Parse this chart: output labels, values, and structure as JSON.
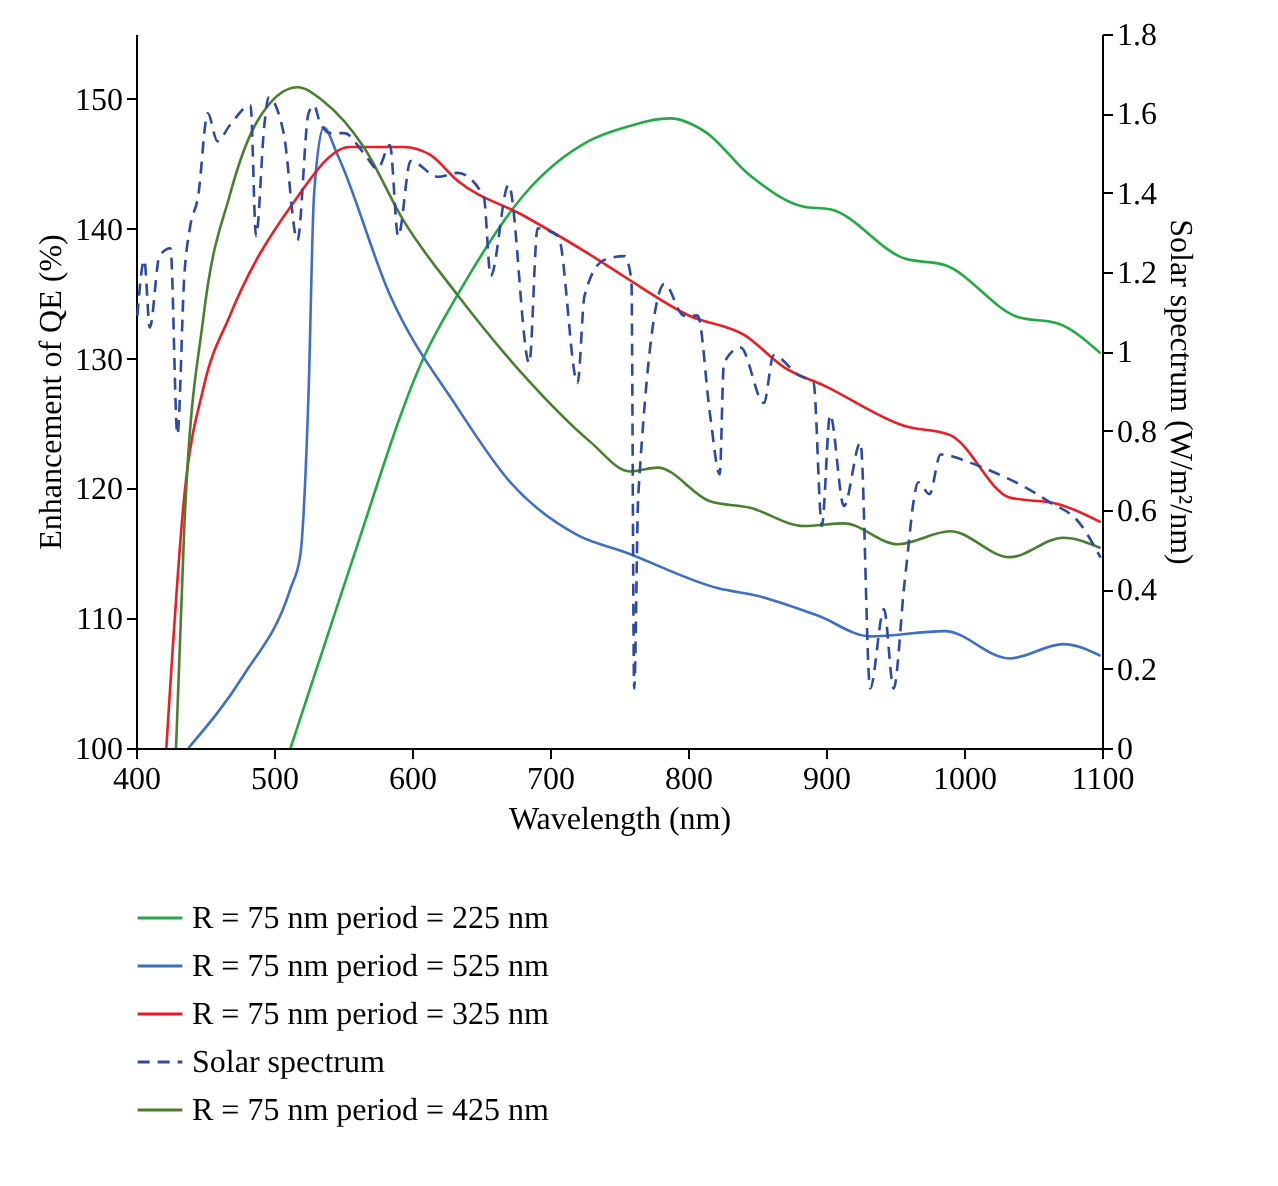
{
  "chart_data": {
    "type": "line",
    "xlabel": "Wavelength (nm)",
    "ylabel": "Enhancement of QE (%)",
    "y2label": "Solar spectrum (W/m²/nm)",
    "xlim": [
      400,
      1100
    ],
    "xticks": [
      400,
      500,
      600,
      700,
      800,
      900,
      1000,
      1100
    ],
    "ylim": [
      100,
      155
    ],
    "yticks": [
      100,
      110,
      120,
      130,
      140,
      150
    ],
    "y2lim": [
      0,
      1.8
    ],
    "y2ticks": [
      0,
      0.2,
      0.4,
      0.6,
      0.8,
      1,
      1.2,
      1.4,
      1.6,
      1.8
    ],
    "grid": false,
    "legend": "bottom",
    "series": [
      {
        "name": "R = 75 nm period = 225 nm",
        "color": "#22aa44",
        "x": [
          512,
          555,
          609,
          633,
          681,
          729,
          754,
          787,
          812,
          845,
          884,
          903,
          957,
          986,
          1039,
          1068,
          1099
        ],
        "values": [
          100,
          113.9,
          130.2,
          134.9,
          142.6,
          146.8,
          147.8,
          148.5,
          147.5,
          144.1,
          141.7,
          141.5,
          137.7,
          137.2,
          133.2,
          132.7,
          130.4
        ]
      },
      {
        "name": "R = 75 nm period = 525 nm",
        "color": "#3f6fc4",
        "x": [
          438,
          478,
          512,
          519,
          525,
          529,
          536,
          546,
          584,
          633,
          671,
          720,
          754,
          822,
          851,
          894,
          932,
          986,
          1033,
          1072,
          1099
        ],
        "values": [
          100,
          105.6,
          112.3,
          114.8,
          127.2,
          142.6,
          147.8,
          145.7,
          134.9,
          126.2,
          120.5,
          116.4,
          115.1,
          112.3,
          111.7,
          110.2,
          108.6,
          109,
          106.9,
          108,
          107.1
        ]
      },
      {
        "name": "R = 75 nm period = 325 nm",
        "color": "#ee1c24",
        "x": [
          422,
          435,
          449,
          468,
          512,
          555,
          594,
          613,
          633,
          681,
          729,
          754,
          801,
          841,
          870,
          899,
          957,
          990,
          1033,
          1068,
          1099
        ],
        "values": [
          100,
          119.4,
          127.8,
          133.3,
          141.7,
          146.3,
          146.3,
          145.7,
          143.7,
          141,
          138,
          136.3,
          133.3,
          131.8,
          129.3,
          127.9,
          124.8,
          124.1,
          119.3,
          118.8,
          117.4
        ]
      },
      {
        "name": "Solar spectrum",
        "color": "#2e4aa0",
        "axis": "y2",
        "line_style": "dashed",
        "x": [
          401,
          406,
          410,
          417,
          425,
          430,
          435,
          439,
          445,
          452,
          459,
          468,
          483,
          487,
          493,
          496,
          507,
          517,
          525,
          529,
          533,
          541,
          551,
          565,
          575,
          584,
          590,
          599,
          619,
          633,
          652,
          657,
          670,
          685,
          691,
          706,
          720,
          725,
          739,
          754,
          759,
          761,
          764,
          783,
          797,
          807,
          816,
          823,
          826,
          838,
          855,
          862,
          880,
          891,
          897,
          903,
          913,
          925,
          932,
          942,
          949,
          957,
          967,
          975,
          983,
          1004,
          1025,
          1043,
          1062,
          1083,
          1099
        ],
        "values": [
          1.09,
          1.23,
          1.06,
          1.24,
          1.26,
          0.79,
          1.19,
          1.31,
          1.39,
          1.6,
          1.53,
          1.57,
          1.62,
          1.29,
          1.57,
          1.64,
          1.55,
          1.28,
          1.6,
          1.62,
          1.58,
          1.55,
          1.55,
          1.5,
          1.46,
          1.52,
          1.29,
          1.48,
          1.44,
          1.45,
          1.39,
          1.19,
          1.42,
          0.97,
          1.31,
          1.29,
          0.92,
          1.14,
          1.23,
          1.24,
          1.18,
          0.15,
          0.64,
          1.17,
          1.09,
          1.09,
          0.84,
          0.69,
          0.97,
          1.01,
          0.87,
          0.99,
          0.94,
          0.92,
          0.56,
          0.84,
          0.61,
          0.77,
          0.15,
          0.35,
          0.15,
          0.42,
          0.67,
          0.64,
          0.74,
          0.72,
          0.69,
          0.66,
          0.62,
          0.57,
          0.48
        ]
      },
      {
        "name": "R = 75 nm period = 425 nm",
        "color": "#4a7f2f",
        "x": [
          429,
          435,
          449,
          468,
          488,
          517,
          536,
          565,
          594,
          633,
          681,
          729,
          758,
          778,
          816,
          845,
          884,
          913,
          952,
          990,
          1033,
          1072,
          1099
        ],
        "values": [
          100,
          117,
          133.3,
          142.6,
          148.3,
          150.9,
          149.8,
          146.3,
          140.6,
          134.9,
          128.7,
          123.6,
          121.3,
          121.6,
          119,
          118.5,
          117.1,
          117.3,
          115.7,
          116.7,
          114.7,
          116.2,
          115.4
        ]
      }
    ]
  }
}
